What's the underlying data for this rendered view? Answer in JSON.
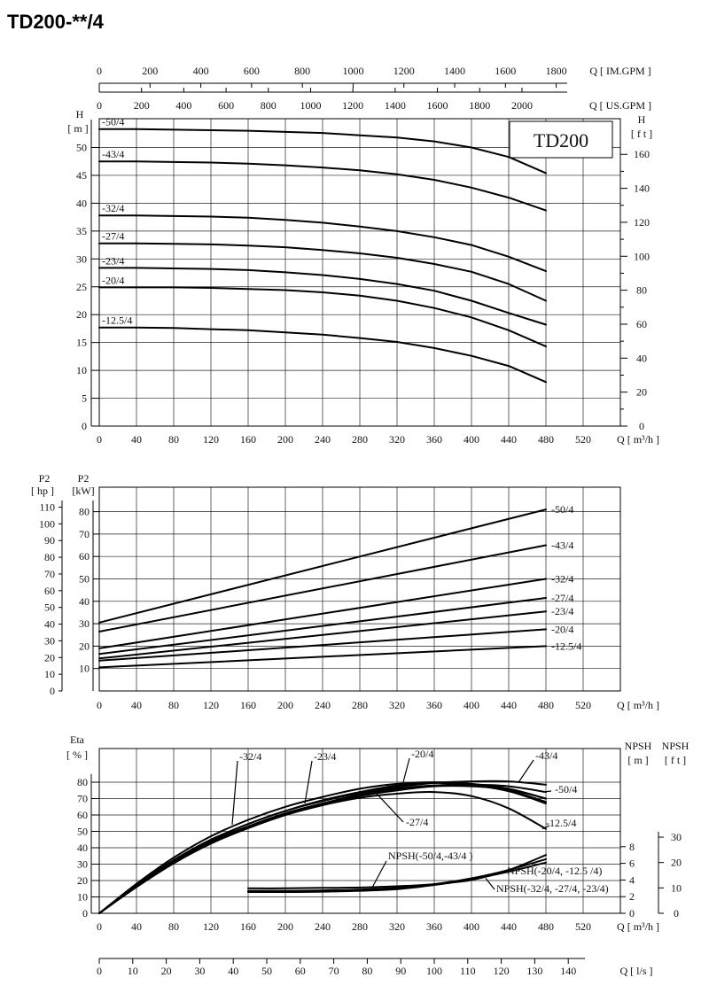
{
  "page_title": "TD200-**/4",
  "chart_data": [
    {
      "type": "line",
      "id": "head",
      "box_label": "TD200",
      "xlabel": "Q [ m³/h ]",
      "ylabel_left": "H [ m ]",
      "ylabel_right": "H [ f t ]",
      "xlim": [
        0,
        560
      ],
      "ylim": [
        0,
        55
      ],
      "x_ticks": [
        0,
        40,
        80,
        120,
        160,
        200,
        240,
        280,
        320,
        360,
        400,
        440,
        480,
        520
      ],
      "y_ticks": [
        0,
        5,
        10,
        15,
        20,
        25,
        30,
        35,
        40,
        45,
        50
      ],
      "y_ticks_ft": [
        0,
        20,
        40,
        60,
        80,
        100,
        120,
        140,
        160
      ],
      "top_axis_im": {
        "label": "Q [ IM.GPM ]",
        "ticks": [
          0,
          200,
          400,
          600,
          800,
          1000,
          1200,
          1400,
          1600,
          1800
        ]
      },
      "top_axis_us": {
        "label": "Q [ US.GPM ]",
        "ticks": [
          0,
          200,
          400,
          600,
          800,
          1000,
          1200,
          1400,
          1600,
          1800,
          2000
        ]
      },
      "x": [
        0,
        40,
        80,
        120,
        160,
        200,
        240,
        280,
        320,
        360,
        400,
        440,
        480
      ],
      "series": [
        {
          "name": "-50/4",
          "values": [
            53.3,
            53.3,
            53.2,
            53.1,
            53.0,
            52.8,
            52.6,
            52.2,
            51.8,
            51.1,
            50.0,
            48.3,
            45.4
          ]
        },
        {
          "name": "-43/4",
          "values": [
            47.5,
            47.5,
            47.4,
            47.3,
            47.1,
            46.8,
            46.4,
            45.9,
            45.2,
            44.2,
            42.8,
            41.0,
            38.7
          ]
        },
        {
          "name": "-32/4",
          "values": [
            37.8,
            37.8,
            37.7,
            37.6,
            37.4,
            37.0,
            36.5,
            35.8,
            35.0,
            33.9,
            32.5,
            30.4,
            27.8
          ]
        },
        {
          "name": "-27/4",
          "values": [
            32.8,
            32.8,
            32.7,
            32.6,
            32.4,
            32.1,
            31.6,
            31.0,
            30.2,
            29.1,
            27.7,
            25.5,
            22.5
          ]
        },
        {
          "name": "-23/4",
          "values": [
            28.4,
            28.4,
            28.3,
            28.2,
            28.0,
            27.6,
            27.1,
            26.4,
            25.5,
            24.3,
            22.5,
            20.3,
            18.2
          ]
        },
        {
          "name": "-20/4",
          "values": [
            24.9,
            24.9,
            24.9,
            24.8,
            24.6,
            24.4,
            24.0,
            23.4,
            22.5,
            21.2,
            19.5,
            17.2,
            14.3
          ]
        },
        {
          "name": "-12.5/4",
          "values": [
            17.7,
            17.7,
            17.6,
            17.4,
            17.2,
            16.8,
            16.4,
            15.8,
            15.1,
            14.0,
            12.6,
            10.8,
            7.9
          ]
        }
      ]
    },
    {
      "type": "line",
      "id": "power",
      "xlabel": "Q [ m³/h ]",
      "ylabel_left": "P2 [ hp ]",
      "ylabel_right": "P2 [kW]",
      "xlim": [
        0,
        560
      ],
      "ylim": [
        0,
        85
      ],
      "x_ticks": [
        0,
        40,
        80,
        120,
        160,
        200,
        240,
        280,
        320,
        360,
        400,
        440,
        480,
        520
      ],
      "y_ticks_kw": [
        10,
        20,
        30,
        40,
        50,
        60,
        70,
        80
      ],
      "y_ticks_hp": [
        0,
        10,
        20,
        30,
        40,
        50,
        60,
        70,
        80,
        90,
        100,
        110
      ],
      "x": [
        0,
        480
      ],
      "series": [
        {
          "name": "-50/4",
          "values": [
            30.5,
            81.0
          ]
        },
        {
          "name": "-43/4",
          "values": [
            26.5,
            65.0
          ]
        },
        {
          "name": "-32/4",
          "values": [
            19.0,
            50.0
          ]
        },
        {
          "name": "-27/4",
          "values": [
            16.5,
            41.5
          ]
        },
        {
          "name": "-23/4",
          "values": [
            14.5,
            35.5
          ]
        },
        {
          "name": "-20/4",
          "values": [
            13.5,
            27.5
          ]
        },
        {
          "name": "-12.5/4",
          "values": [
            10.5,
            20.0
          ]
        }
      ]
    },
    {
      "type": "line",
      "id": "efficiency",
      "xlabel": "Q [ m³/h ]",
      "ylabel_left": "Eta [ % ]",
      "ylabel_npsh_m": "NPSH [ m ]",
      "ylabel_npsh_ft": "NPSH [ f t ]",
      "xlim": [
        0,
        560
      ],
      "ylim": [
        0,
        85
      ],
      "x_ticks": [
        0,
        40,
        80,
        120,
        160,
        200,
        240,
        280,
        320,
        360,
        400,
        440,
        480,
        520
      ],
      "y_ticks": [
        0,
        10,
        20,
        30,
        40,
        50,
        60,
        70,
        80
      ],
      "npsh_m_ticks": [
        0,
        2,
        4,
        6,
        8
      ],
      "npsh_ft_ticks": [
        0,
        10,
        20,
        30
      ],
      "ls_axis": {
        "label": "Q [ l/s ]",
        "ticks": [
          0,
          10,
          20,
          30,
          40,
          50,
          60,
          70,
          80,
          90,
          100,
          110,
          120,
          130,
          140
        ]
      },
      "eta_x": [
        0,
        40,
        80,
        120,
        160,
        200,
        240,
        280,
        320,
        360,
        400,
        440,
        480
      ],
      "eta_series": [
        {
          "name": "-50/4",
          "values": [
            0,
            17,
            32,
            44,
            53,
            61,
            67,
            72,
            76,
            78,
            78.5,
            77.5,
            74
          ]
        },
        {
          "name": "-43/4",
          "values": [
            0,
            17.5,
            32.5,
            45,
            54.5,
            62.5,
            68.5,
            73.5,
            77,
            79.5,
            80.5,
            80.5,
            78.5
          ]
        },
        {
          "name": "-32/4",
          "values": [
            0,
            18,
            34,
            47,
            57,
            65,
            71,
            76,
            79,
            80,
            79,
            76,
            70
          ]
        },
        {
          "name": "-27/4",
          "values": [
            0,
            16.5,
            31,
            43,
            52,
            60,
            66,
            71.5,
            75,
            77.5,
            77.5,
            75.5,
            70
          ]
        },
        {
          "name": "-23/4",
          "values": [
            0,
            16.5,
            31.5,
            43.5,
            53,
            61,
            67,
            72.5,
            76,
            78,
            78,
            74.5,
            67
          ]
        },
        {
          "name": "-20/4",
          "values": [
            0,
            17,
            32,
            44.5,
            54.5,
            62.5,
            69,
            74,
            78,
            79.5,
            78.5,
            75,
            68
          ]
        },
        {
          "name": "-12.5/4",
          "values": [
            0,
            16,
            30.5,
            42.5,
            52,
            60,
            66,
            70.5,
            73,
            74,
            71.5,
            64,
            51.5
          ]
        }
      ],
      "npsh_x": [
        160,
        200,
        240,
        280,
        320,
        360,
        400,
        440,
        480
      ],
      "npsh_series": [
        {
          "name": "NPSH(-50/4,-43/4 )",
          "values": [
            3.0,
            3.0,
            3.05,
            3.1,
            3.25,
            3.5,
            4.0,
            5.2,
            7.0
          ]
        },
        {
          "name": "NPSH(-20/4, -12.5 /4)",
          "values": [
            2.7,
            2.7,
            2.75,
            2.85,
            3.05,
            3.5,
            4.2,
            5.2,
            6.5
          ]
        },
        {
          "name": "NPSH(-32/4, -27/4, -23/4)",
          "values": [
            2.55,
            2.55,
            2.6,
            2.7,
            2.9,
            3.4,
            4.1,
            5.0,
            6.1
          ]
        }
      ]
    }
  ]
}
